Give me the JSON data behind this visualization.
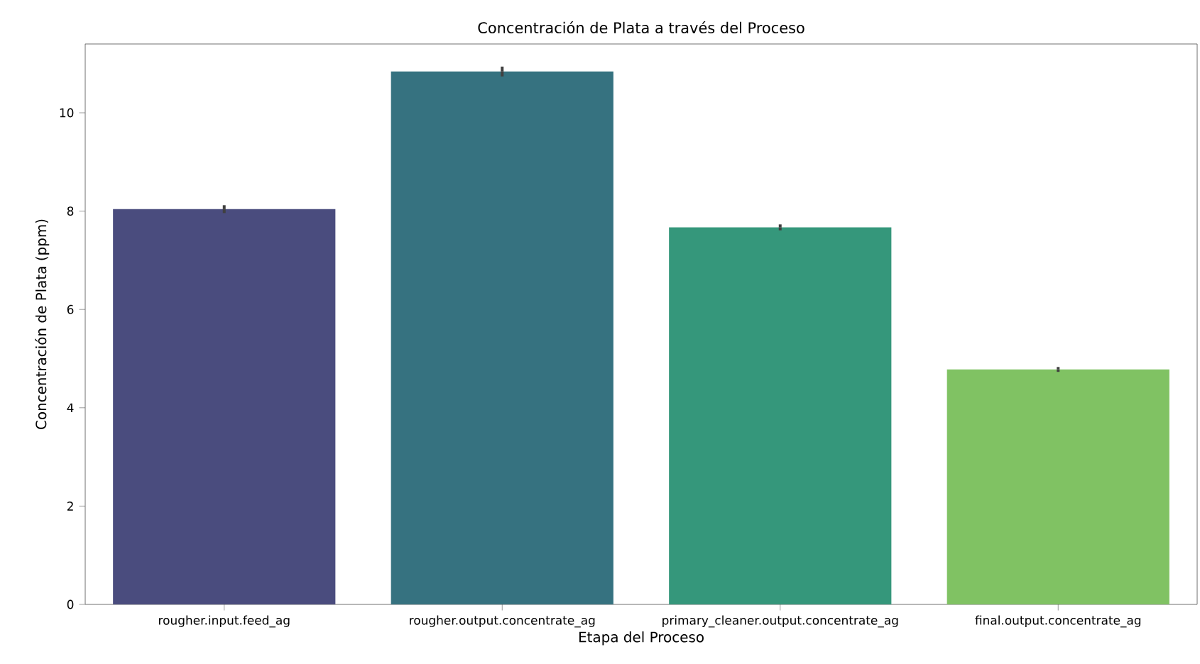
{
  "chart_data": {
    "type": "bar",
    "title": "Concentración de Plata a través del Proceso",
    "xlabel": "Etapa del Proceso",
    "ylabel": "Concentración de Plata (ppm)",
    "categories": [
      "rougher.input.feed_ag",
      "rougher.output.concentrate_ag",
      "primary_cleaner.output.concentrate_ag",
      "final.output.concentrate_ag"
    ],
    "values": [
      8.04,
      10.84,
      7.67,
      4.78
    ],
    "errors": [
      0.08,
      0.1,
      0.06,
      0.05
    ],
    "colors": [
      "#4a4c7e",
      "#367280",
      "#35977b",
      "#80c263"
    ],
    "ylim": [
      0,
      11.4
    ],
    "yticks": [
      0,
      2,
      4,
      6,
      8,
      10
    ]
  }
}
